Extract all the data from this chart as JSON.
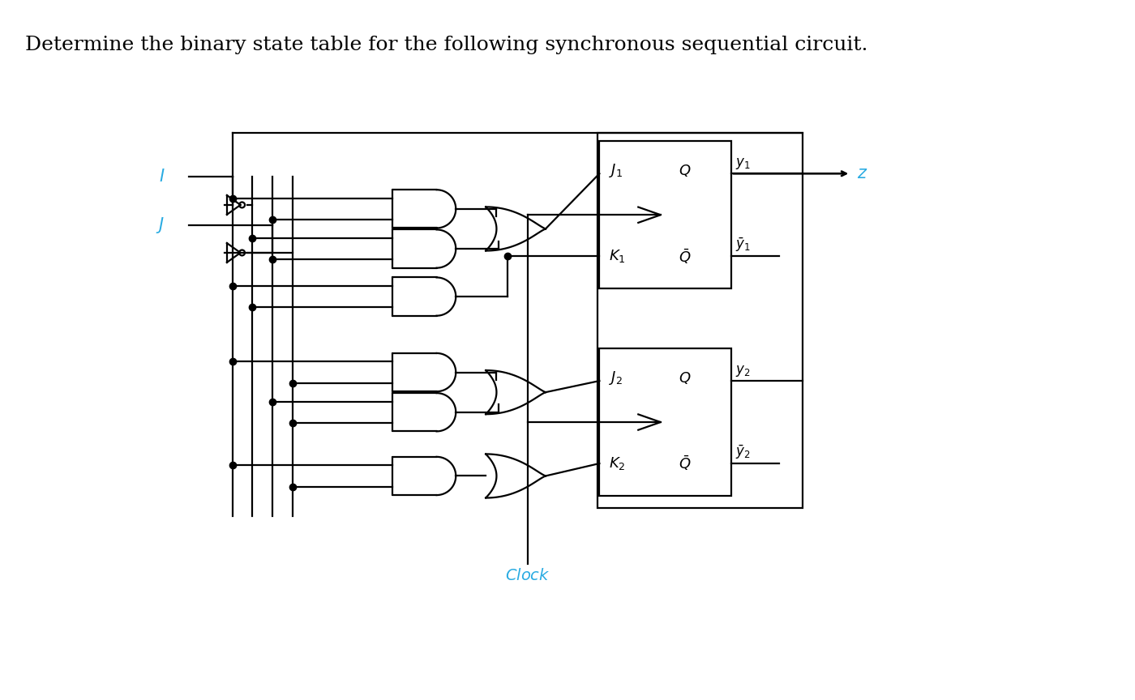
{
  "title": "Determine the binary state table for the following synchronous sequential circuit.",
  "title_color": "#000000",
  "title_fontsize": 18,
  "bg_color": "#ffffff",
  "line_color": "#000000",
  "cyan_color": "#29ABE2",
  "lw": 1.6,
  "fig_width": 14.0,
  "fig_height": 8.64,
  "dpi": 100
}
